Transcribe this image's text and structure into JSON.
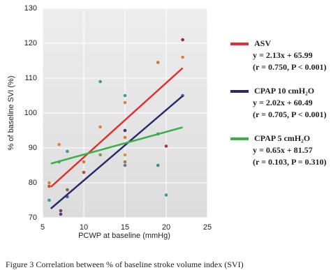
{
  "chart_data": {
    "type": "scatter",
    "xlabel": "PCWP at baseline (mmHg)",
    "ylabel": "% of baseline SVI (%)",
    "xlim": [
      5,
      25
    ],
    "xticks": [
      5,
      10,
      15,
      20,
      25
    ],
    "ylim": [
      70,
      130
    ],
    "yticks": [
      70,
      80,
      90,
      100,
      110,
      120,
      130
    ],
    "grid": true,
    "x": [
      5.8,
      5.8,
      5.8,
      7,
      7,
      8,
      7.2,
      7.2,
      8,
      8,
      10,
      10,
      12,
      12,
      12,
      15,
      15,
      15,
      15,
      15,
      15,
      15,
      19,
      19,
      19,
      20,
      20,
      22,
      22,
      22
    ],
    "values": [
      80,
      79,
      75,
      86,
      91,
      89,
      72,
      71,
      78,
      76,
      83,
      86,
      109,
      96,
      88,
      105,
      103,
      95,
      93,
      88,
      86,
      85,
      114.5,
      94,
      85,
      90.5,
      76.5,
      121,
      116,
      105
    ],
    "colors": [
      "#d9843a",
      "#b85a3a",
      "#3a9a9a",
      "#4aa36a",
      "#d9843a",
      "#3a9a9a",
      "#7a3a6a",
      "#5a3a8a",
      "#8a5a4a",
      "#3a6a9a",
      "#b84a3a",
      "#c87a3a",
      "#3a9a9a",
      "#d9843a",
      "#7aa03a",
      "#3a9a9a",
      "#d9843a",
      "#3a3a7a",
      "#c8843a",
      "#d9943a",
      "#9a7a5a",
      "#5a7a9a",
      "#b87a3a",
      "#4a9a6a",
      "#3a8a9a",
      "#a03a3a",
      "#3a9a9a",
      "#9a2a2a",
      "#d9843a",
      "#3a6aaa"
    ],
    "series": [
      {
        "name": "ASV",
        "color": "#e03030",
        "equation": "y = 2.13x + 65.99",
        "stats": "(r = 0.750, P < 0.001)",
        "x": [
          6,
          22
        ],
        "values": [
          78.8,
          112.9
        ]
      },
      {
        "name": "CPAP 10 cmH₂O",
        "color": "#2a2a6a",
        "equation": "y = 2.02x + 60.49",
        "stats": "(r = 0.705, P < 0.001)",
        "x": [
          6,
          22
        ],
        "values": [
          72.6,
          104.9
        ]
      },
      {
        "name": "CPAP 5 cmH₂O",
        "color": "#3ab04a",
        "equation": "y = 0.65x + 81.57",
        "stats": "(r = 0.103, P = 0.310)",
        "x": [
          6,
          22
        ],
        "values": [
          85.5,
          95.9
        ]
      }
    ],
    "caption": "Figure 3   Correlation between % of baseline stroke volume index (SVI)"
  }
}
